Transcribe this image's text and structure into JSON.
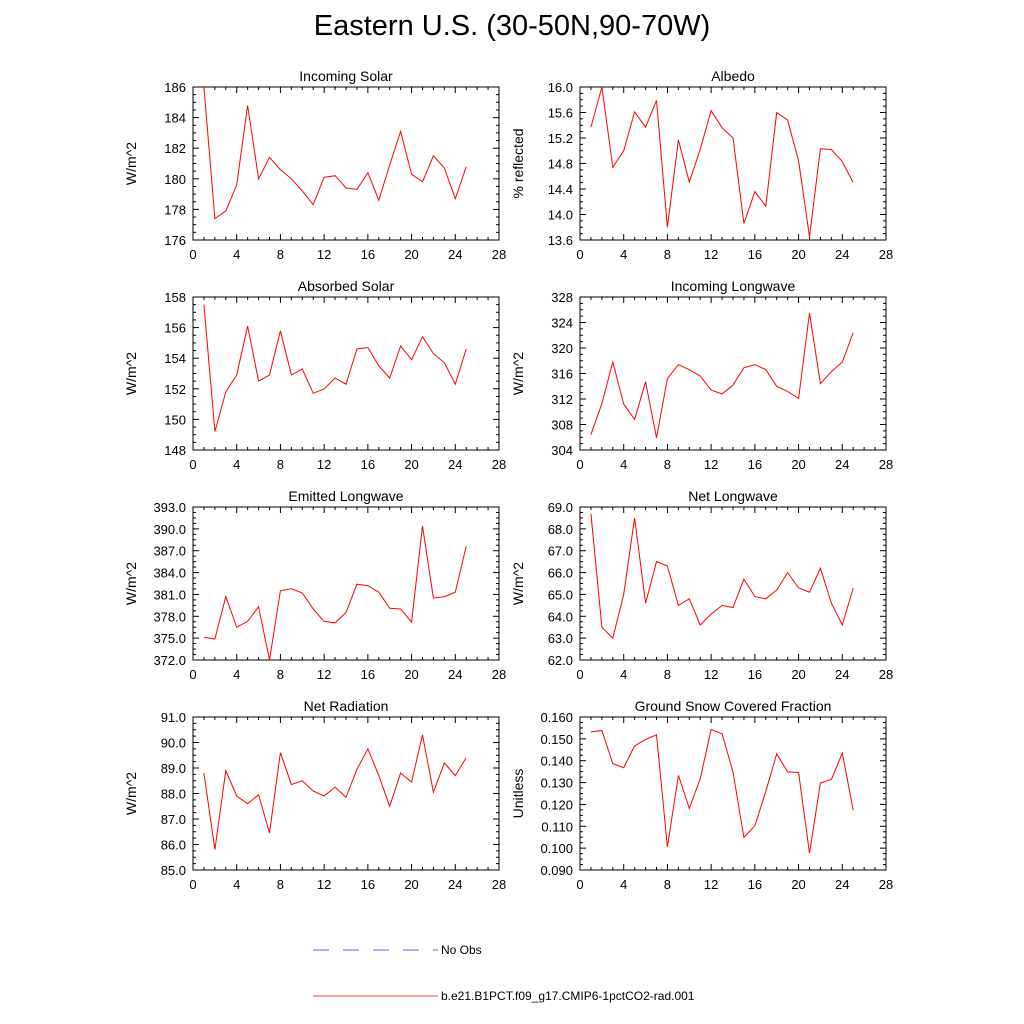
{
  "title": "Eastern U.S. (30-50N,90-70W)",
  "legend": [
    {
      "label": "No Obs",
      "color": "#3333cc",
      "style": "dashed"
    },
    {
      "label": "b.e21.B1PCT.f09_g17.CMIP6-1pctCO2-rad.001",
      "color": "#ff0000",
      "style": "solid"
    }
  ],
  "chart_data": [
    {
      "type": "line",
      "title": "Incoming Solar",
      "xlabel": "",
      "ylabel": "W/m^2",
      "xlim": [
        0,
        28
      ],
      "ylim": [
        176,
        186
      ],
      "xticks": [
        0,
        4,
        8,
        12,
        16,
        20,
        24,
        28
      ],
      "yticks": [
        "176",
        "178",
        "180",
        "182",
        "184",
        "186"
      ],
      "series": [
        {
          "color": "#ff0000",
          "x": [
            1,
            2,
            3,
            4,
            5,
            6,
            7,
            8,
            9,
            10,
            11,
            12,
            13,
            14,
            15,
            16,
            17,
            18,
            19,
            20,
            21,
            22,
            23,
            24,
            25
          ],
          "values": [
            186.0,
            177.4,
            177.9,
            179.6,
            184.8,
            180.0,
            181.4,
            180.6,
            180.0,
            179.2,
            178.3,
            180.1,
            180.2,
            179.4,
            179.3,
            180.4,
            178.6,
            180.9,
            183.1,
            180.3,
            179.8,
            181.5,
            180.7,
            178.7,
            180.8
          ]
        }
      ]
    },
    {
      "type": "line",
      "title": "Albedo",
      "xlabel": "",
      "ylabel": "% reflected",
      "xlim": [
        0,
        28
      ],
      "ylim": [
        13.6,
        16.0
      ],
      "xticks": [
        0,
        4,
        8,
        12,
        16,
        20,
        24,
        28
      ],
      "yticks": [
        "13.6",
        "14.0",
        "14.4",
        "14.8",
        "15.2",
        "15.6",
        "16.0"
      ],
      "series": [
        {
          "color": "#ff0000",
          "x": [
            1,
            2,
            3,
            4,
            5,
            6,
            7,
            8,
            9,
            10,
            11,
            12,
            13,
            14,
            15,
            16,
            17,
            18,
            19,
            20,
            21,
            22,
            23,
            24,
            25
          ],
          "values": [
            15.37,
            16.0,
            14.74,
            15.0,
            15.61,
            15.37,
            15.79,
            13.8,
            15.17,
            14.51,
            15.02,
            15.63,
            15.36,
            15.2,
            13.86,
            14.36,
            14.13,
            15.6,
            15.48,
            14.84,
            13.65,
            15.03,
            15.02,
            14.83,
            14.5
          ]
        }
      ]
    },
    {
      "type": "line",
      "title": "Absorbed Solar",
      "xlabel": "",
      "ylabel": "W/m^2",
      "xlim": [
        0,
        28
      ],
      "ylim": [
        148,
        158
      ],
      "xticks": [
        0,
        4,
        8,
        12,
        16,
        20,
        24,
        28
      ],
      "yticks": [
        "148",
        "150",
        "152",
        "154",
        "156",
        "158"
      ],
      "series": [
        {
          "color": "#ff0000",
          "x": [
            1,
            2,
            3,
            4,
            5,
            6,
            7,
            8,
            9,
            10,
            11,
            12,
            13,
            14,
            15,
            16,
            17,
            18,
            19,
            20,
            21,
            22,
            23,
            24,
            25
          ],
          "values": [
            157.5,
            149.2,
            151.8,
            152.9,
            156.1,
            152.5,
            152.9,
            155.8,
            152.9,
            153.3,
            151.7,
            152.0,
            152.7,
            152.3,
            154.6,
            154.7,
            153.5,
            152.7,
            154.8,
            153.9,
            155.4,
            154.3,
            153.7,
            152.3,
            154.6
          ]
        }
      ]
    },
    {
      "type": "line",
      "title": "Incoming Longwave",
      "xlabel": "",
      "ylabel": "W/m^2",
      "xlim": [
        0,
        28
      ],
      "ylim": [
        304,
        328
      ],
      "xticks": [
        0,
        4,
        8,
        12,
        16,
        20,
        24,
        28
      ],
      "yticks": [
        "304",
        "308",
        "312",
        "316",
        "320",
        "324",
        "328"
      ],
      "series": [
        {
          "color": "#ff0000",
          "x": [
            1,
            2,
            3,
            4,
            5,
            6,
            7,
            8,
            9,
            10,
            11,
            12,
            13,
            14,
            15,
            16,
            17,
            18,
            19,
            20,
            21,
            22,
            23,
            24,
            25
          ],
          "values": [
            306.4,
            311.3,
            317.8,
            311.2,
            308.8,
            314.7,
            305.9,
            315.2,
            317.4,
            316.6,
            315.6,
            313.4,
            312.8,
            314.2,
            316.9,
            317.4,
            316.6,
            314.0,
            313.2,
            312.1,
            325.5,
            314.4,
            316.3,
            317.8,
            322.4
          ]
        }
      ]
    },
    {
      "type": "line",
      "title": "Emitted Longwave",
      "xlabel": "",
      "ylabel": "W/m^2",
      "xlim": [
        0,
        28
      ],
      "ylim": [
        372.0,
        393.0
      ],
      "xticks": [
        0,
        4,
        8,
        12,
        16,
        20,
        24,
        28
      ],
      "yticks": [
        "372.0",
        "375.0",
        "378.0",
        "381.0",
        "384.0",
        "387.0",
        "390.0",
        "393.0"
      ],
      "series": [
        {
          "color": "#ff0000",
          "x": [
            1,
            2,
            3,
            4,
            5,
            6,
            7,
            8,
            9,
            10,
            11,
            12,
            13,
            14,
            15,
            16,
            17,
            18,
            19,
            20,
            21,
            22,
            23,
            24,
            25
          ],
          "values": [
            375.1,
            374.9,
            380.7,
            376.5,
            377.3,
            379.3,
            372.0,
            381.5,
            381.8,
            381.2,
            379.0,
            377.3,
            377.1,
            378.5,
            382.4,
            382.2,
            381.3,
            379.1,
            379.0,
            377.2,
            390.4,
            380.5,
            380.7,
            381.3,
            387.6
          ]
        }
      ]
    },
    {
      "type": "line",
      "title": "Net Longwave",
      "xlabel": "",
      "ylabel": "W/m^2",
      "xlim": [
        0,
        28
      ],
      "ylim": [
        62.0,
        69.0
      ],
      "xticks": [
        0,
        4,
        8,
        12,
        16,
        20,
        24,
        28
      ],
      "yticks": [
        "62.0",
        "63.0",
        "64.0",
        "65.0",
        "66.0",
        "67.0",
        "68.0",
        "69.0"
      ],
      "series": [
        {
          "color": "#ff0000",
          "x": [
            1,
            2,
            3,
            4,
            5,
            6,
            7,
            8,
            9,
            10,
            11,
            12,
            13,
            14,
            15,
            16,
            17,
            18,
            19,
            20,
            21,
            22,
            23,
            24,
            25
          ],
          "values": [
            68.7,
            63.5,
            63.0,
            65.0,
            68.5,
            64.6,
            66.5,
            66.3,
            64.5,
            64.8,
            63.6,
            64.1,
            64.5,
            64.4,
            65.7,
            64.9,
            64.8,
            65.2,
            66.0,
            65.3,
            65.1,
            66.2,
            64.6,
            63.6,
            65.3
          ]
        }
      ]
    },
    {
      "type": "line",
      "title": "Net Radiation",
      "xlabel": "",
      "ylabel": "W/m^2",
      "xlim": [
        0,
        28
      ],
      "ylim": [
        85.0,
        91.0
      ],
      "xticks": [
        0,
        4,
        8,
        12,
        16,
        20,
        24,
        28
      ],
      "yticks": [
        "85.0",
        "86.0",
        "87.0",
        "88.0",
        "89.0",
        "90.0",
        "91.0"
      ],
      "series": [
        {
          "color": "#ff0000",
          "x": [
            1,
            2,
            3,
            4,
            5,
            6,
            7,
            8,
            9,
            10,
            11,
            12,
            13,
            14,
            15,
            16,
            17,
            18,
            19,
            20,
            21,
            22,
            23,
            24,
            25
          ],
          "values": [
            88.8,
            85.8,
            88.9,
            87.9,
            87.6,
            87.95,
            86.45,
            89.6,
            88.35,
            88.5,
            88.1,
            87.9,
            88.25,
            87.85,
            88.95,
            89.75,
            88.7,
            87.5,
            88.8,
            88.45,
            90.3,
            88.05,
            89.2,
            88.7,
            89.4
          ]
        }
      ]
    },
    {
      "type": "line",
      "title": "Ground Snow Covered Fraction",
      "xlabel": "",
      "ylabel": "Unitless",
      "xlim": [
        0,
        28
      ],
      "ylim": [
        0.09,
        0.16
      ],
      "xticks": [
        0,
        4,
        8,
        12,
        16,
        20,
        24,
        28
      ],
      "yticks": [
        "0.090",
        "0.100",
        "0.110",
        "0.120",
        "0.130",
        "0.140",
        "0.150",
        "0.160"
      ],
      "series": [
        {
          "color": "#ff0000",
          "x": [
            1,
            2,
            3,
            4,
            5,
            6,
            7,
            8,
            9,
            10,
            11,
            12,
            13,
            14,
            15,
            16,
            17,
            18,
            19,
            20,
            21,
            22,
            23,
            24,
            25
          ],
          "values": [
            0.1532,
            0.1538,
            0.1387,
            0.1368,
            0.1468,
            0.1497,
            0.1519,
            0.1006,
            0.1333,
            0.1182,
            0.1317,
            0.1543,
            0.1523,
            0.1348,
            0.1049,
            0.1102,
            0.126,
            0.1431,
            0.1349,
            0.1346,
            0.0977,
            0.1298,
            0.1314,
            0.1435,
            0.1174
          ]
        }
      ]
    }
  ]
}
